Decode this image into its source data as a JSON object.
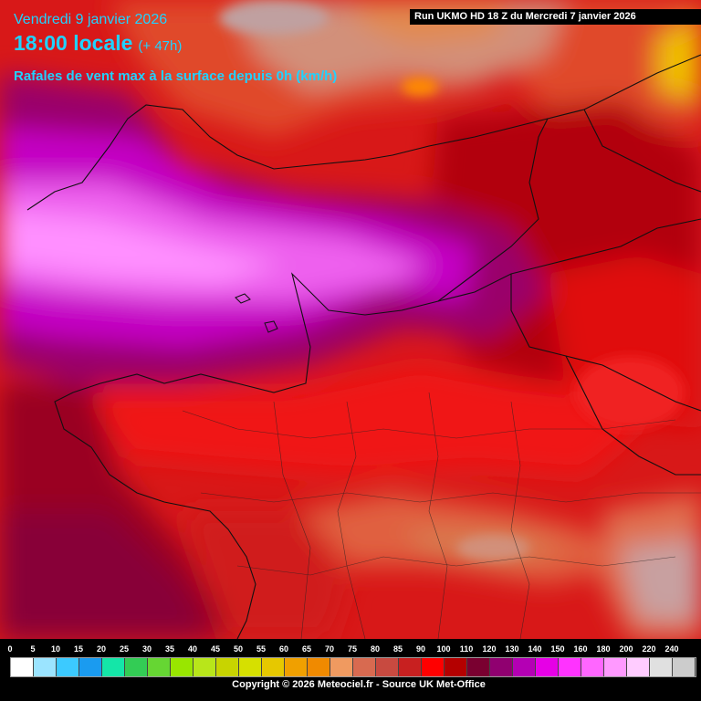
{
  "header": {
    "date": "Vendredi 9 janvier 2026",
    "time": "18:00 locale",
    "offset": "(+ 47h)",
    "parameter": "Rafales de vent max à la surface depuis 0h (km/h)",
    "run": "Run UKMO HD 18 Z du Mercredi 7 janvier 2026"
  },
  "legend": {
    "labels": [
      "0",
      "5",
      "10",
      "15",
      "20",
      "25",
      "30",
      "35",
      "40",
      "45",
      "50",
      "55",
      "60",
      "65",
      "70",
      "75",
      "80",
      "85",
      "90",
      "100",
      "110",
      "120",
      "130",
      "140",
      "150",
      "160",
      "180",
      "200",
      "220",
      "240"
    ],
    "colors": [
      "#ffffff",
      "#9be4ff",
      "#3ccaff",
      "#1a9bf0",
      "#14e6a8",
      "#33cc55",
      "#66d633",
      "#99e600",
      "#b8e61a",
      "#c8d400",
      "#d6e000",
      "#e6c800",
      "#f0a000",
      "#f08a00",
      "#f09a60",
      "#d86a50",
      "#c84a40",
      "#c82020",
      "#ff0000",
      "#b40000",
      "#7a0030",
      "#900070",
      "#b400b4",
      "#e600e6",
      "#ff33ff",
      "#ff66ff",
      "#ff99ff",
      "#ffccff",
      "#e0e0e0",
      "#cccccc"
    ],
    "unit_colors": {
      "strong_red": "#e01010",
      "dark_red": "#9a0010",
      "magenta": "#c800c8",
      "light_magenta": "#ee66ee"
    }
  },
  "map": {
    "region": "France",
    "description_colors": [
      "#f05a30",
      "#d82020",
      "#b00010",
      "#900030",
      "#a80090",
      "#e040e0",
      "#ff80ff"
    ]
  },
  "footer": {
    "copyright": "Copyright © 2026 Meteociel.fr - Source UK Met-Office"
  }
}
